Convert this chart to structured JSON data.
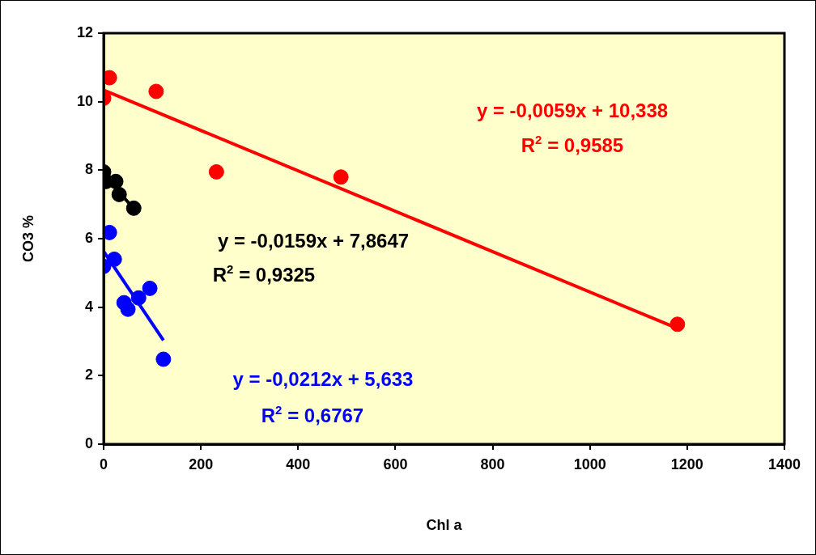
{
  "chart_data": {
    "type": "scatter",
    "xlabel": "Chl a",
    "ylabel": "CO3 %",
    "xlim": [
      0,
      1400
    ],
    "xticks": [
      0,
      200,
      400,
      600,
      800,
      1000,
      1200,
      1400
    ],
    "ylim": [
      0,
      12
    ],
    "yticks": [
      0,
      2,
      4,
      6,
      8,
      10,
      12
    ],
    "grid": false,
    "legend": false,
    "marker": "circle",
    "series": [
      {
        "type": "scatter",
        "color": "#ff0000",
        "x": [
          0,
          12,
          108,
          232,
          488,
          1180
        ],
        "values": [
          10.1,
          10.7,
          10.3,
          7.95,
          7.8,
          3.5
        ]
      },
      {
        "type": "scatter",
        "color": "#000000",
        "x": [
          0,
          5,
          25,
          32,
          62
        ],
        "values": [
          7.95,
          7.67,
          7.67,
          7.29,
          6.89
        ]
      },
      {
        "type": "scatter",
        "color": "#0000ff",
        "x": [
          0,
          12,
          22,
          42,
          50,
          72,
          95,
          123
        ],
        "values": [
          5.19,
          6.18,
          5.4,
          4.13,
          3.94,
          4.27,
          4.55,
          2.48
        ]
      },
      {
        "type": "line",
        "marker": "none",
        "color": "#ff0000",
        "x": [
          0,
          1180
        ],
        "values": [
          10.34,
          3.38
        ]
      },
      {
        "type": "line",
        "marker": "none",
        "color": "#000000",
        "x": [
          0,
          62
        ],
        "values": [
          7.86,
          6.88
        ]
      },
      {
        "type": "line",
        "marker": "none",
        "color": "#0000ff",
        "x": [
          0,
          123
        ],
        "values": [
          5.63,
          3.03
        ]
      }
    ],
    "annotations": [
      "y = -0,0059x + 10,338",
      "R$^{2}$ = 0,9585",
      "y = -0,0159x + 7,8647",
      "R$^{2}$ = 0,9325",
      "y = -0,0212x + 5,633",
      "R$^{2}$ = 0,6767"
    ]
  }
}
